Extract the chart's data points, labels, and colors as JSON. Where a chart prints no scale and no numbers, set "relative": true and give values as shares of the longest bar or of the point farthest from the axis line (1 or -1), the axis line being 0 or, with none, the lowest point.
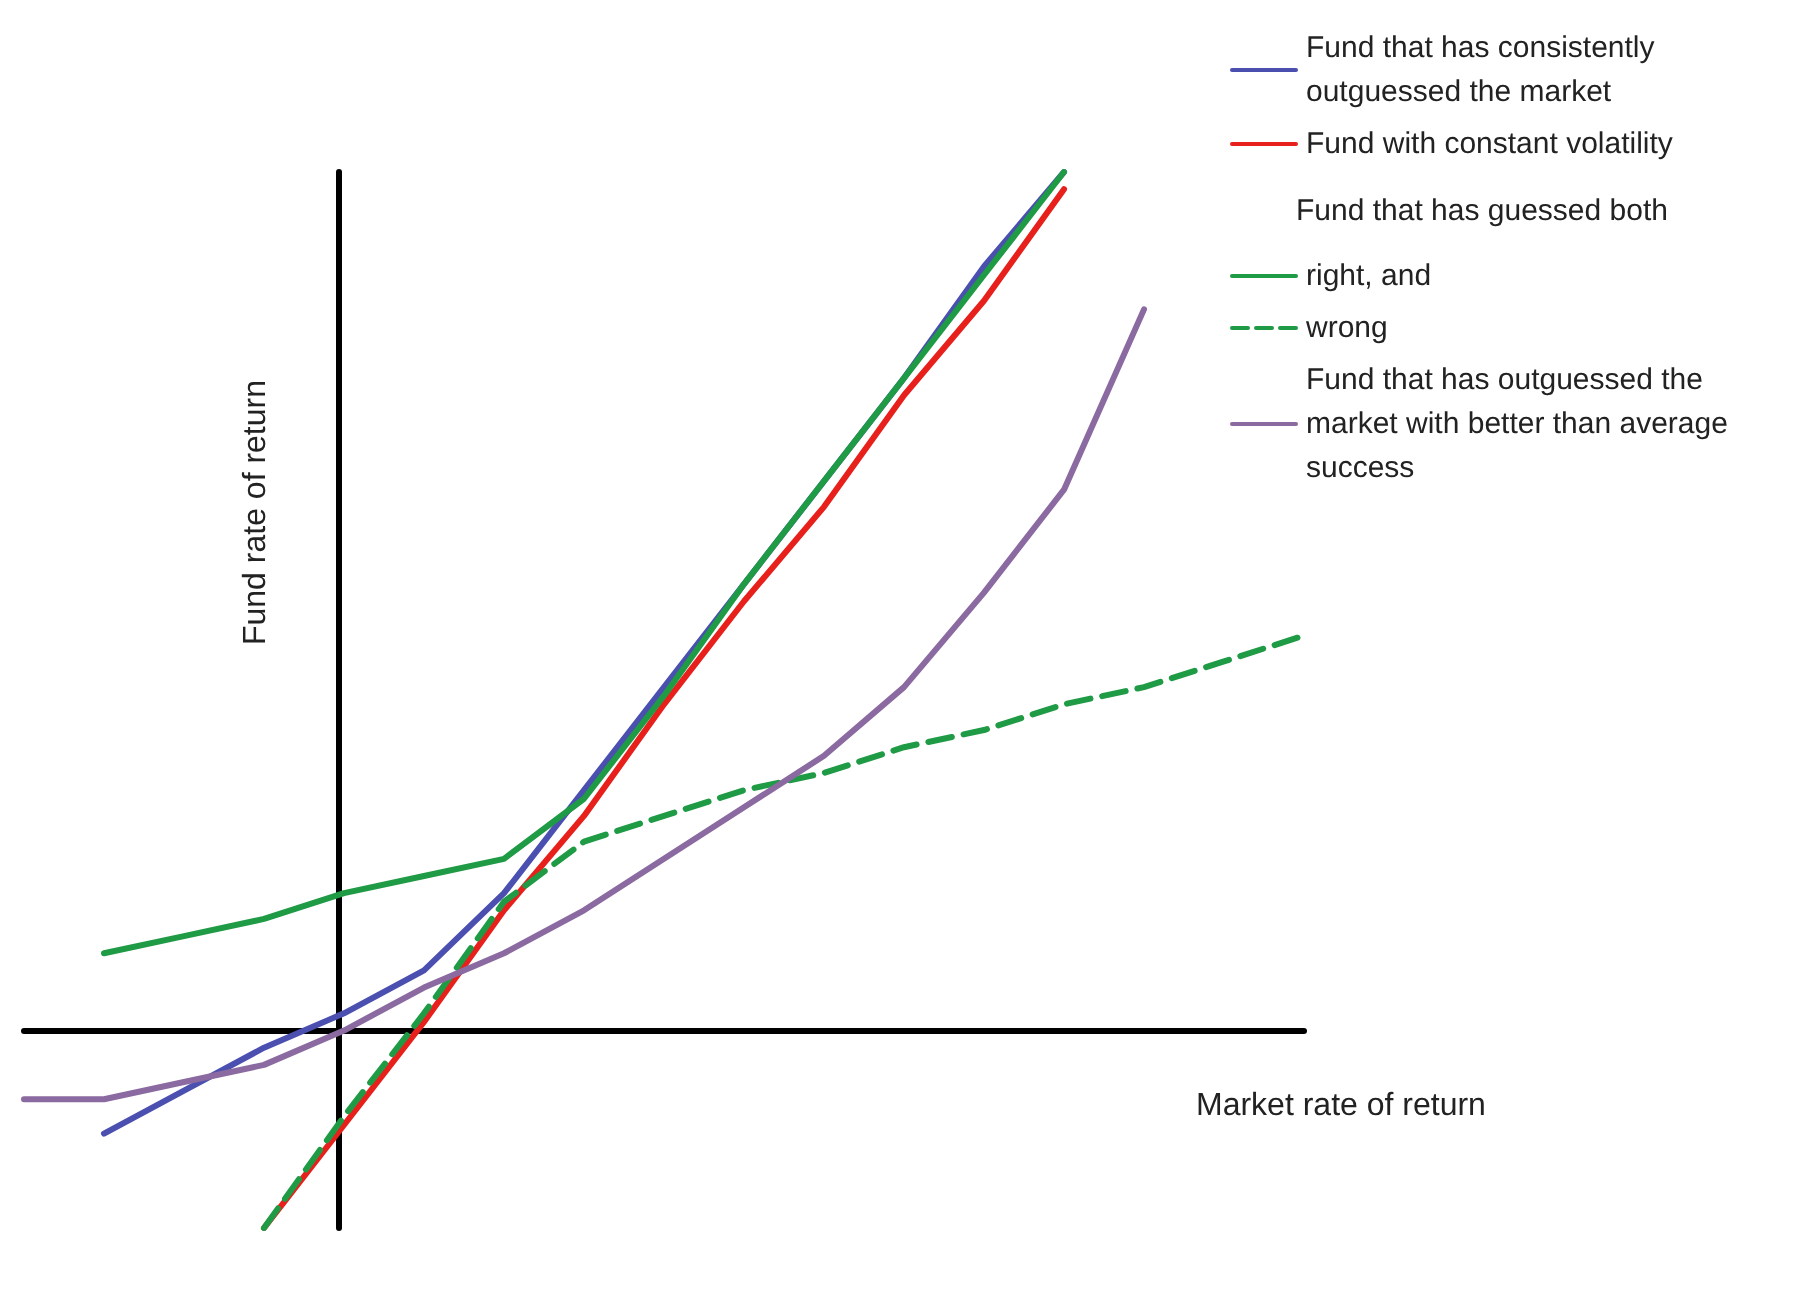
{
  "chart_data": {
    "type": "line",
    "relative": true,
    "xlabel": "Market rate of return",
    "ylabel": "Fund rate of return",
    "legend": "top right",
    "legend_title": "Fund that has guessed both",
    "line_style": "solid",
    "marker": "none",
    "grid": false,
    "categories": [
      null,
      null,
      null,
      null,
      null,
      null,
      null,
      null,
      null,
      null,
      null,
      null,
      null,
      null,
      null,
      null,
      null
    ],
    "series": [
      {
        "name": "Fund that has consistently outguessed the market",
        "color": "#4a4fb0",
        "values": [
          null,
          -0.12,
          -0.07,
          -0.02,
          0.02,
          0.07,
          0.16,
          0.28,
          0.4,
          0.52,
          0.64,
          0.76,
          0.89,
          1.0,
          null,
          null,
          null
        ]
      },
      {
        "name": "Fund with constant volatility",
        "color": "#e8201c",
        "values": [
          null,
          null,
          null,
          -0.23,
          -0.11,
          0.01,
          0.14,
          0.25,
          0.38,
          0.5,
          0.61,
          0.74,
          0.85,
          0.98,
          null,
          null,
          null
        ]
      },
      {
        "name": "right, and",
        "color": "#1f9a45",
        "values": [
          null,
          0.09,
          0.11,
          0.13,
          0.16,
          0.18,
          0.2,
          0.27,
          0.39,
          0.52,
          0.64,
          0.76,
          0.88,
          1.0,
          null,
          null,
          null
        ]
      },
      {
        "name": "wrong",
        "color": "#1f9a45",
        "line_style": "dashed",
        "values": [
          null,
          null,
          null,
          -0.23,
          -0.1,
          0.02,
          0.15,
          0.22,
          0.25,
          0.28,
          0.3,
          0.33,
          0.35,
          0.38,
          0.4,
          0.43,
          0.46
        ]
      },
      {
        "name": "Fund that has outguessed the market with better than average success",
        "color": "#8a6aa0",
        "values": [
          -0.08,
          -0.08,
          -0.06,
          -0.04,
          0.0,
          0.05,
          0.09,
          0.14,
          0.2,
          0.26,
          0.32,
          0.4,
          0.51,
          0.63,
          0.84,
          null,
          null
        ]
      }
    ]
  }
}
